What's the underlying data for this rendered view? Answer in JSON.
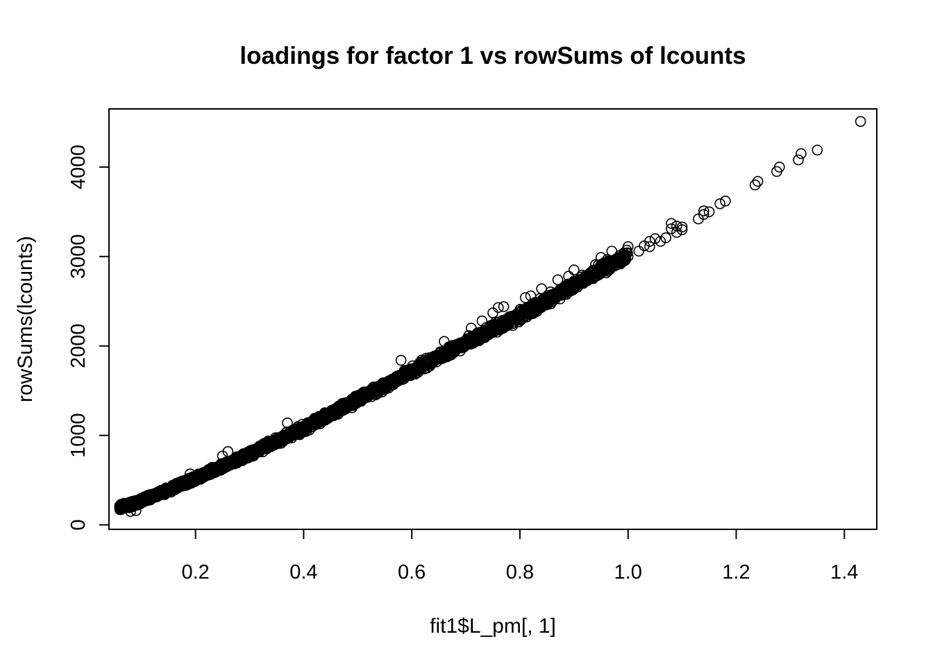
{
  "chart_data": {
    "type": "scatter",
    "title": "loadings for factor 1 vs rowSums of lcounts",
    "xlabel": "fit1$L_pm[, 1]",
    "ylabel": "rowSums(lcounts)",
    "xlim": [
      0.04,
      1.46
    ],
    "ylim": [
      -50,
      4650
    ],
    "x_ticks": [
      0.2,
      0.4,
      0.6,
      0.8,
      1.0,
      1.2,
      1.4
    ],
    "x_tick_labels": [
      "0.2",
      "0.4",
      "0.6",
      "0.8",
      "1.0",
      "1.2",
      "1.4"
    ],
    "y_ticks": [
      0,
      1000,
      2000,
      3000,
      4000
    ],
    "y_tick_labels": [
      "0",
      "1000",
      "2000",
      "3000",
      "4000"
    ],
    "marker": "open-circle",
    "grid": false,
    "legend": "none",
    "trend": {
      "x": [
        0.06,
        0.08,
        0.1,
        0.15,
        0.2,
        0.25,
        0.3,
        0.4,
        0.5,
        0.6,
        0.7,
        0.8,
        0.9,
        1.0,
        1.1,
        1.18
      ],
      "y": [
        195,
        225,
        270,
        390,
        520,
        650,
        790,
        1080,
        1400,
        1720,
        2040,
        2340,
        2680,
        3020,
        3360,
        3620
      ],
      "count": 3000,
      "spread": 40
    },
    "points": [
      {
        "x": 0.06,
        "y": 200
      },
      {
        "x": 0.08,
        "y": 150
      },
      {
        "x": 0.09,
        "y": 160
      },
      {
        "x": 0.19,
        "y": 570
      },
      {
        "x": 0.25,
        "y": 770
      },
      {
        "x": 0.26,
        "y": 820
      },
      {
        "x": 0.37,
        "y": 1140
      },
      {
        "x": 0.58,
        "y": 1840
      },
      {
        "x": 0.66,
        "y": 2050
      },
      {
        "x": 0.71,
        "y": 2200
      },
      {
        "x": 0.73,
        "y": 2280
      },
      {
        "x": 0.75,
        "y": 2370
      },
      {
        "x": 0.76,
        "y": 2430
      },
      {
        "x": 0.77,
        "y": 2440
      },
      {
        "x": 0.81,
        "y": 2540
      },
      {
        "x": 0.82,
        "y": 2560
      },
      {
        "x": 0.84,
        "y": 2640
      },
      {
        "x": 0.87,
        "y": 2740
      },
      {
        "x": 0.89,
        "y": 2780
      },
      {
        "x": 0.9,
        "y": 2850
      },
      {
        "x": 0.94,
        "y": 2910
      },
      {
        "x": 0.95,
        "y": 2990
      },
      {
        "x": 0.97,
        "y": 3060
      },
      {
        "x": 0.98,
        "y": 2930
      },
      {
        "x": 0.99,
        "y": 2940
      },
      {
        "x": 1.0,
        "y": 3000
      },
      {
        "x": 1.0,
        "y": 3110
      },
      {
        "x": 1.02,
        "y": 3060
      },
      {
        "x": 1.03,
        "y": 3120
      },
      {
        "x": 1.04,
        "y": 3110
      },
      {
        "x": 1.04,
        "y": 3170
      },
      {
        "x": 1.05,
        "y": 3200
      },
      {
        "x": 1.06,
        "y": 3170
      },
      {
        "x": 1.07,
        "y": 3210
      },
      {
        "x": 1.08,
        "y": 3310
      },
      {
        "x": 1.08,
        "y": 3370
      },
      {
        "x": 1.09,
        "y": 3340
      },
      {
        "x": 1.09,
        "y": 3270
      },
      {
        "x": 1.1,
        "y": 3330
      },
      {
        "x": 1.1,
        "y": 3300
      },
      {
        "x": 1.13,
        "y": 3420
      },
      {
        "x": 1.14,
        "y": 3470
      },
      {
        "x": 1.14,
        "y": 3510
      },
      {
        "x": 1.15,
        "y": 3500
      },
      {
        "x": 1.17,
        "y": 3590
      },
      {
        "x": 1.18,
        "y": 3620
      },
      {
        "x": 1.235,
        "y": 3800
      },
      {
        "x": 1.24,
        "y": 3840
      },
      {
        "x": 1.275,
        "y": 3950
      },
      {
        "x": 1.28,
        "y": 4000
      },
      {
        "x": 1.315,
        "y": 4080
      },
      {
        "x": 1.32,
        "y": 4150
      },
      {
        "x": 1.35,
        "y": 4190
      },
      {
        "x": 1.43,
        "y": 4510
      }
    ]
  }
}
